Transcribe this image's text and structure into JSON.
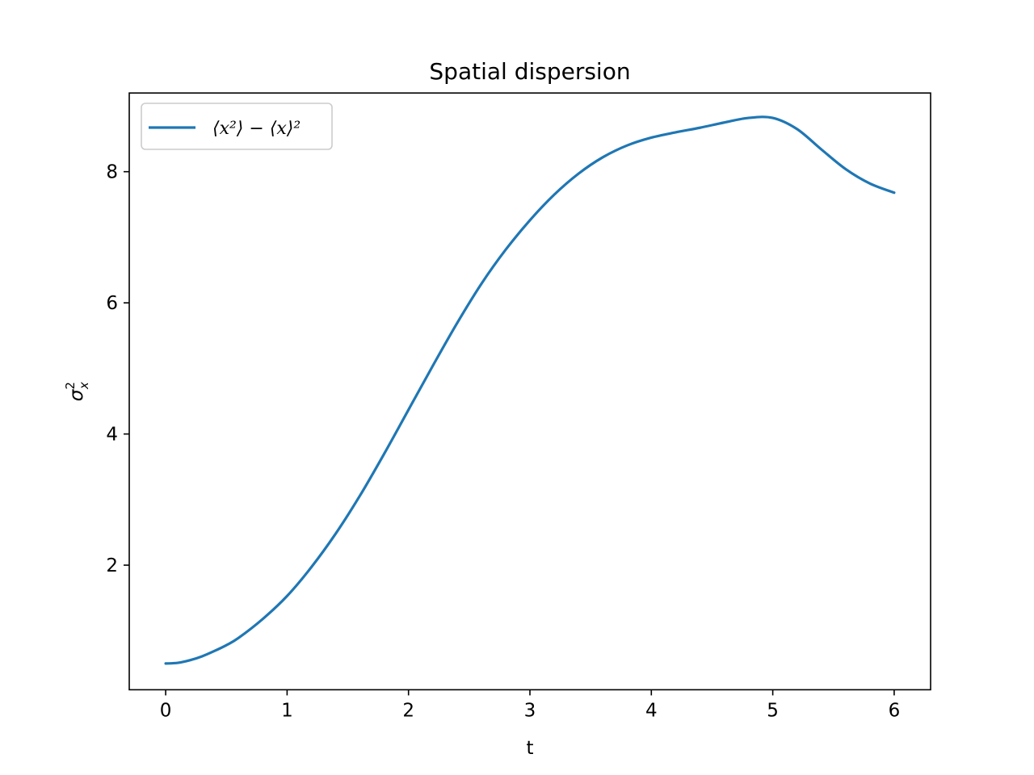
{
  "chart_data": {
    "type": "line",
    "title": "Spatial dispersion",
    "xlabel": "t",
    "ylabel": {
      "base": "σ",
      "sup": "2",
      "sub": "x"
    },
    "xlim": [
      -0.3,
      6.3
    ],
    "ylim": [
      0.1,
      9.2
    ],
    "xticks": [
      0,
      1,
      2,
      3,
      4,
      5,
      6
    ],
    "yticks": [
      2,
      4,
      6,
      8
    ],
    "grid": false,
    "legend_position": "upper-left",
    "series": [
      {
        "name": "⟨x²⟩ − ⟨x⟩²",
        "color": "#1f77b4",
        "x": [
          0.0,
          0.1,
          0.2,
          0.3,
          0.4,
          0.5,
          0.6,
          0.8,
          1.0,
          1.2,
          1.4,
          1.6,
          1.8,
          2.0,
          2.2,
          2.4,
          2.6,
          2.8,
          3.0,
          3.2,
          3.4,
          3.6,
          3.8,
          4.0,
          4.2,
          4.4,
          4.6,
          4.8,
          5.0,
          5.2,
          5.4,
          5.6,
          5.8,
          6.0
        ],
        "y": [
          0.5,
          0.51,
          0.55,
          0.61,
          0.69,
          0.78,
          0.89,
          1.18,
          1.53,
          1.97,
          2.48,
          3.06,
          3.7,
          4.37,
          5.04,
          5.69,
          6.29,
          6.81,
          7.26,
          7.65,
          7.97,
          8.22,
          8.4,
          8.52,
          8.6,
          8.67,
          8.75,
          8.82,
          8.82,
          8.65,
          8.34,
          8.04,
          7.82,
          7.68
        ]
      }
    ]
  }
}
